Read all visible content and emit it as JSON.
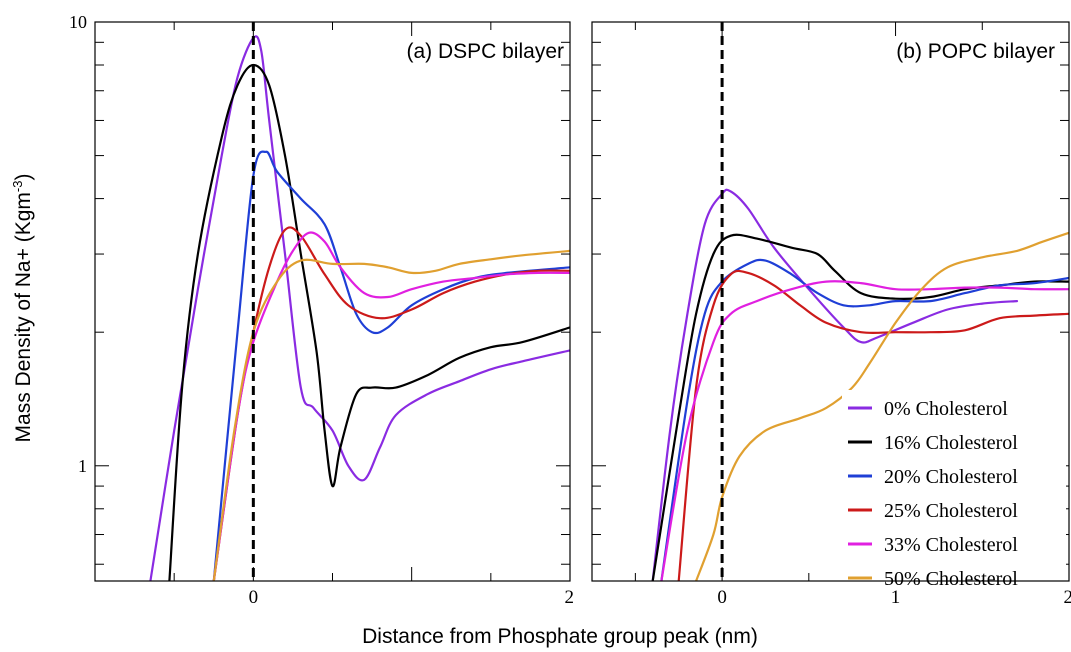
{
  "figure": {
    "y_axis_label": "Mass Density of Na+ (Kgm",
    "y_axis_label_sup": "-3",
    "y_axis_label_end": ")",
    "x_axis_label": "Distance from Phosphate group peak (nm)"
  },
  "chart_data": [
    {
      "type": "line",
      "panel_label": "(a) DSPC bilayer",
      "x_range": [
        -1.0,
        2.0
      ],
      "y_range": [
        0.55,
        10
      ],
      "y_scale": "log",
      "x_ticks": [
        {
          "value": 0,
          "label": "0"
        },
        {
          "value": 2,
          "label": "2"
        }
      ],
      "y_ticks": [
        {
          "value": 10,
          "label": "10"
        },
        {
          "value": 1,
          "label": "1"
        }
      ],
      "reference_line_x": 0,
      "series": [
        {
          "name": "0% Cholesterol",
          "color": "#8a2be2",
          "points": [
            [
              -0.65,
              0.55
            ],
            [
              -0.5,
              1.2
            ],
            [
              -0.35,
              2.5
            ],
            [
              -0.2,
              5.0
            ],
            [
              -0.1,
              7.5
            ],
            [
              0.0,
              9.2
            ],
            [
              0.05,
              8.6
            ],
            [
              0.1,
              6.0
            ],
            [
              0.2,
              3.0
            ],
            [
              0.3,
              1.5
            ],
            [
              0.38,
              1.35
            ],
            [
              0.5,
              1.2
            ],
            [
              0.6,
              1.0
            ],
            [
              0.7,
              0.93
            ],
            [
              0.8,
              1.1
            ],
            [
              0.9,
              1.3
            ],
            [
              1.1,
              1.45
            ],
            [
              1.3,
              1.55
            ],
            [
              1.5,
              1.65
            ],
            [
              1.7,
              1.72
            ],
            [
              2.0,
              1.82
            ]
          ]
        },
        {
          "name": "16% Cholesterol",
          "color": "#000000",
          "points": [
            [
              -0.53,
              0.55
            ],
            [
              -0.45,
              1.5
            ],
            [
              -0.35,
              3.0
            ],
            [
              -0.2,
              5.5
            ],
            [
              -0.1,
              7.2
            ],
            [
              0.0,
              8.0
            ],
            [
              0.1,
              7.2
            ],
            [
              0.2,
              5.0
            ],
            [
              0.3,
              3.0
            ],
            [
              0.4,
              1.8
            ],
            [
              0.45,
              1.2
            ],
            [
              0.5,
              0.9
            ],
            [
              0.55,
              1.1
            ],
            [
              0.65,
              1.45
            ],
            [
              0.75,
              1.5
            ],
            [
              0.9,
              1.5
            ],
            [
              1.1,
              1.6
            ],
            [
              1.3,
              1.75
            ],
            [
              1.5,
              1.85
            ],
            [
              1.7,
              1.9
            ],
            [
              2.0,
              2.05
            ]
          ]
        },
        {
          "name": "20% Cholesterol",
          "color": "#1f3fd6",
          "points": [
            [
              -0.25,
              0.55
            ],
            [
              -0.1,
              2.0
            ],
            [
              0.0,
              4.5
            ],
            [
              0.08,
              5.1
            ],
            [
              0.15,
              4.6
            ],
            [
              0.3,
              4.0
            ],
            [
              0.45,
              3.5
            ],
            [
              0.55,
              2.8
            ],
            [
              0.65,
              2.2
            ],
            [
              0.75,
              2.0
            ],
            [
              0.85,
              2.05
            ],
            [
              1.0,
              2.3
            ],
            [
              1.2,
              2.5
            ],
            [
              1.4,
              2.65
            ],
            [
              1.6,
              2.72
            ],
            [
              2.0,
              2.8
            ]
          ]
        },
        {
          "name": "25% Cholesterol",
          "color": "#cc1a1a",
          "points": [
            [
              -0.25,
              0.55
            ],
            [
              -0.1,
              1.3
            ],
            [
              0.0,
              2.0
            ],
            [
              0.1,
              2.8
            ],
            [
              0.2,
              3.4
            ],
            [
              0.3,
              3.3
            ],
            [
              0.45,
              2.7
            ],
            [
              0.6,
              2.3
            ],
            [
              0.8,
              2.15
            ],
            [
              1.0,
              2.25
            ],
            [
              1.2,
              2.45
            ],
            [
              1.4,
              2.6
            ],
            [
              1.6,
              2.7
            ],
            [
              1.8,
              2.75
            ],
            [
              2.0,
              2.75
            ]
          ]
        },
        {
          "name": "33% Cholesterol",
          "color": "#e020e0",
          "points": [
            [
              -0.25,
              0.55
            ],
            [
              -0.1,
              1.3
            ],
            [
              0.0,
              1.9
            ],
            [
              0.15,
              2.6
            ],
            [
              0.25,
              3.05
            ],
            [
              0.35,
              3.35
            ],
            [
              0.45,
              3.2
            ],
            [
              0.55,
              2.8
            ],
            [
              0.7,
              2.45
            ],
            [
              0.85,
              2.4
            ],
            [
              1.0,
              2.5
            ],
            [
              1.2,
              2.6
            ],
            [
              1.4,
              2.65
            ],
            [
              1.6,
              2.7
            ],
            [
              1.8,
              2.72
            ],
            [
              2.0,
              2.72
            ]
          ]
        },
        {
          "name": "50% Cholesterol",
          "color": "#e0a030",
          "points": [
            [
              -0.25,
              0.55
            ],
            [
              -0.12,
              1.2
            ],
            [
              0.0,
              2.0
            ],
            [
              0.15,
              2.6
            ],
            [
              0.3,
              2.9
            ],
            [
              0.5,
              2.85
            ],
            [
              0.7,
              2.85
            ],
            [
              0.85,
              2.8
            ],
            [
              1.0,
              2.72
            ],
            [
              1.15,
              2.75
            ],
            [
              1.3,
              2.85
            ],
            [
              1.5,
              2.92
            ],
            [
              1.7,
              2.98
            ],
            [
              2.0,
              3.05
            ]
          ]
        }
      ]
    },
    {
      "type": "line",
      "panel_label": "(b) POPC bilayer",
      "x_range": [
        -0.75,
        2.0
      ],
      "y_range": [
        0.55,
        10
      ],
      "y_scale": "log",
      "x_ticks": [
        {
          "value": 0,
          "label": "0"
        },
        {
          "value": 1,
          "label": "1"
        },
        {
          "value": 2,
          "label": "2"
        }
      ],
      "y_ticks": [],
      "reference_line_x": 0,
      "series": [
        {
          "name": "0% Cholesterol",
          "color": "#8a2be2",
          "points": [
            [
              -0.4,
              0.55
            ],
            [
              -0.3,
              1.2
            ],
            [
              -0.2,
              2.2
            ],
            [
              -0.1,
              3.5
            ],
            [
              0.0,
              4.1
            ],
            [
              0.05,
              4.15
            ],
            [
              0.15,
              3.8
            ],
            [
              0.3,
              3.1
            ],
            [
              0.5,
              2.5
            ],
            [
              0.7,
              2.05
            ],
            [
              0.8,
              1.9
            ],
            [
              0.9,
              1.95
            ],
            [
              1.1,
              2.1
            ],
            [
              1.3,
              2.25
            ],
            [
              1.5,
              2.32
            ],
            [
              1.7,
              2.35
            ]
          ]
        },
        {
          "name": "16% Cholesterol",
          "color": "#000000",
          "points": [
            [
              -0.4,
              0.55
            ],
            [
              -0.25,
              1.3
            ],
            [
              -0.15,
              2.2
            ],
            [
              -0.05,
              3.0
            ],
            [
              0.05,
              3.3
            ],
            [
              0.2,
              3.25
            ],
            [
              0.4,
              3.1
            ],
            [
              0.55,
              3.0
            ],
            [
              0.65,
              2.75
            ],
            [
              0.8,
              2.45
            ],
            [
              1.0,
              2.38
            ],
            [
              1.2,
              2.4
            ],
            [
              1.4,
              2.5
            ],
            [
              1.6,
              2.55
            ],
            [
              1.8,
              2.6
            ],
            [
              2.0,
              2.6
            ]
          ]
        },
        {
          "name": "20% Cholesterol",
          "color": "#1f3fd6",
          "points": [
            [
              -0.35,
              0.55
            ],
            [
              -0.2,
              1.4
            ],
            [
              -0.1,
              2.2
            ],
            [
              0.0,
              2.6
            ],
            [
              0.15,
              2.85
            ],
            [
              0.25,
              2.9
            ],
            [
              0.4,
              2.7
            ],
            [
              0.55,
              2.45
            ],
            [
              0.7,
              2.3
            ],
            [
              0.85,
              2.3
            ],
            [
              1.0,
              2.35
            ],
            [
              1.2,
              2.35
            ],
            [
              1.4,
              2.45
            ],
            [
              1.6,
              2.55
            ],
            [
              1.8,
              2.58
            ],
            [
              2.0,
              2.65
            ]
          ]
        },
        {
          "name": "25% Cholesterol",
          "color": "#cc1a1a",
          "points": [
            [
              -0.25,
              0.55
            ],
            [
              -0.15,
              1.5
            ],
            [
              -0.05,
              2.3
            ],
            [
              0.05,
              2.7
            ],
            [
              0.15,
              2.72
            ],
            [
              0.3,
              2.55
            ],
            [
              0.45,
              2.3
            ],
            [
              0.6,
              2.1
            ],
            [
              0.8,
              2.0
            ],
            [
              1.0,
              2.0
            ],
            [
              1.2,
              2.0
            ],
            [
              1.4,
              2.02
            ],
            [
              1.6,
              2.15
            ],
            [
              1.8,
              2.18
            ],
            [
              2.0,
              2.2
            ]
          ]
        },
        {
          "name": "33% Cholesterol",
          "color": "#e020e0",
          "points": [
            [
              -0.35,
              0.55
            ],
            [
              -0.2,
              1.2
            ],
            [
              -0.05,
              1.9
            ],
            [
              0.05,
              2.2
            ],
            [
              0.2,
              2.35
            ],
            [
              0.4,
              2.5
            ],
            [
              0.6,
              2.6
            ],
            [
              0.8,
              2.58
            ],
            [
              1.0,
              2.5
            ],
            [
              1.2,
              2.5
            ],
            [
              1.4,
              2.52
            ],
            [
              1.6,
              2.52
            ],
            [
              1.8,
              2.5
            ],
            [
              2.0,
              2.5
            ]
          ]
        },
        {
          "name": "50% Cholesterol",
          "color": "#e0a030",
          "points": [
            [
              -0.15,
              0.55
            ],
            [
              -0.05,
              0.7
            ],
            [
              0.0,
              0.85
            ],
            [
              0.1,
              1.05
            ],
            [
              0.25,
              1.2
            ],
            [
              0.45,
              1.28
            ],
            [
              0.6,
              1.35
            ],
            [
              0.75,
              1.5
            ],
            [
              0.85,
              1.7
            ],
            [
              1.0,
              2.1
            ],
            [
              1.15,
              2.5
            ],
            [
              1.3,
              2.8
            ],
            [
              1.5,
              2.95
            ],
            [
              1.7,
              3.05
            ],
            [
              1.85,
              3.2
            ],
            [
              2.0,
              3.35
            ]
          ]
        }
      ]
    }
  ]
}
